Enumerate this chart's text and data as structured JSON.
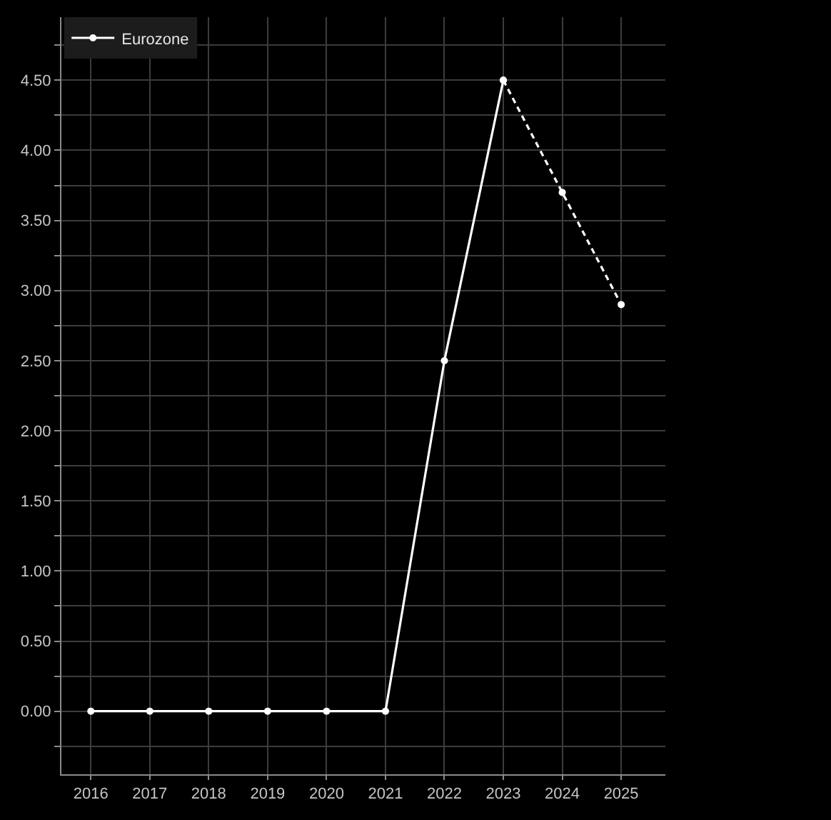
{
  "chart_data": {
    "type": "line",
    "series": [
      {
        "name": "Eurozone",
        "color": "#ffffff",
        "x": [
          2016,
          2017,
          2018,
          2019,
          2020,
          2021,
          2022,
          2023
        ],
        "values": [
          0,
          0,
          0,
          0,
          0,
          0,
          2.5,
          4.5
        ]
      },
      {
        "color": "#ffffff",
        "line_style": "dashed",
        "x": [
          2023,
          2024,
          2025
        ],
        "values": [
          4.5,
          3.7,
          2.9
        ]
      }
    ],
    "xlim": [
      2015.5,
      2025.75
    ],
    "xticks": [
      2016,
      2017,
      2018,
      2019,
      2020,
      2021,
      2022,
      2023,
      2024,
      2025
    ],
    "ylim": [
      -0.45,
      4.95
    ],
    "yticks": [
      {
        "value": -0.25,
        "label": null
      },
      {
        "value": 0,
        "label": "0.00"
      },
      {
        "value": 0.25,
        "label": null
      },
      {
        "value": 0.5,
        "label": "0.50"
      },
      {
        "value": 0.75,
        "label": null
      },
      {
        "value": 1,
        "label": "1.00"
      },
      {
        "value": 1.25,
        "label": null
      },
      {
        "value": 1.5,
        "label": "1.50"
      },
      {
        "value": 1.75,
        "label": null
      },
      {
        "value": 2,
        "label": "2.00"
      },
      {
        "value": 2.25,
        "label": null
      },
      {
        "value": 2.5,
        "label": "2.50"
      },
      {
        "value": 2.75,
        "label": null
      },
      {
        "value": 3,
        "label": "3.00"
      },
      {
        "value": 3.25,
        "label": null
      },
      {
        "value": 3.5,
        "label": "3.50"
      },
      {
        "value": 3.75,
        "label": null
      },
      {
        "value": 4,
        "label": "4.00"
      },
      {
        "value": 4.25,
        "label": null
      },
      {
        "value": 4.5,
        "label": "4.50"
      },
      {
        "value": 4.75,
        "label": null
      }
    ],
    "grid": true,
    "legend": "top left",
    "marker": "circle",
    "line_style": "solid"
  }
}
